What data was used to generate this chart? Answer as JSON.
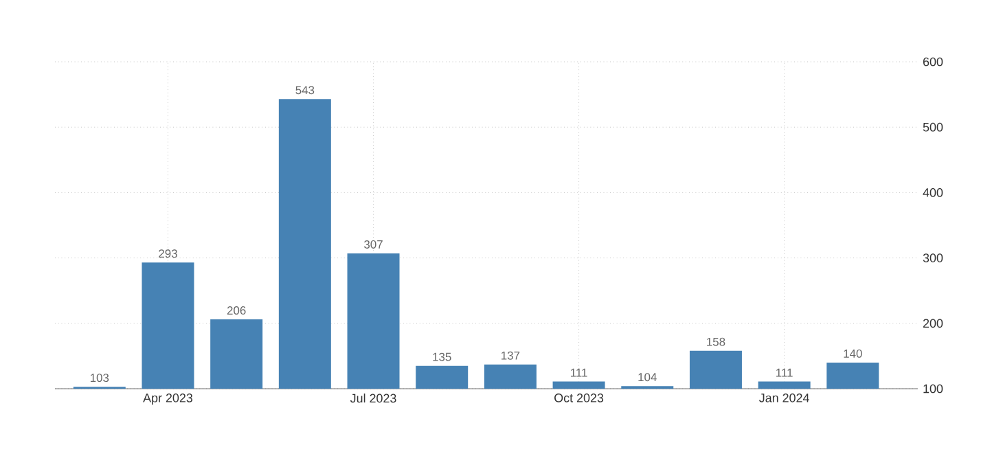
{
  "chart_data": {
    "type": "bar",
    "categories": [
      null,
      "Apr 2023",
      null,
      null,
      "Jul 2023",
      null,
      null,
      "Oct 2023",
      null,
      null,
      "Jan 2024",
      null
    ],
    "values": [
      103,
      293,
      206,
      543,
      307,
      135,
      137,
      111,
      104,
      158,
      111,
      140
    ],
    "color": "#4682b4",
    "ylim": [
      100,
      600
    ],
    "yticks": [
      100,
      200,
      300,
      400,
      500,
      600
    ],
    "grid": true,
    "data_labels": true
  }
}
